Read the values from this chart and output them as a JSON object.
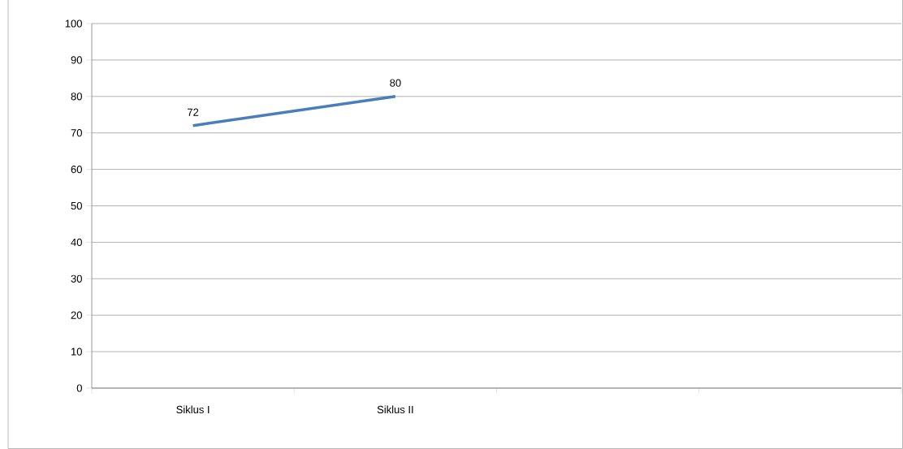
{
  "chart_data": {
    "type": "line",
    "categories": [
      "Siklus I",
      "Siklus II",
      null,
      null
    ],
    "series": [
      {
        "color": "#4a7ebb",
        "values": [
          72,
          80,
          null,
          null
        ]
      }
    ],
    "ylim": [
      0,
      100
    ],
    "yticks": [
      0,
      10,
      20,
      30,
      40,
      50,
      60,
      70,
      80,
      90,
      100
    ],
    "grid": "y",
    "data_labels": true,
    "marker": "none",
    "line_style": "solid"
  }
}
